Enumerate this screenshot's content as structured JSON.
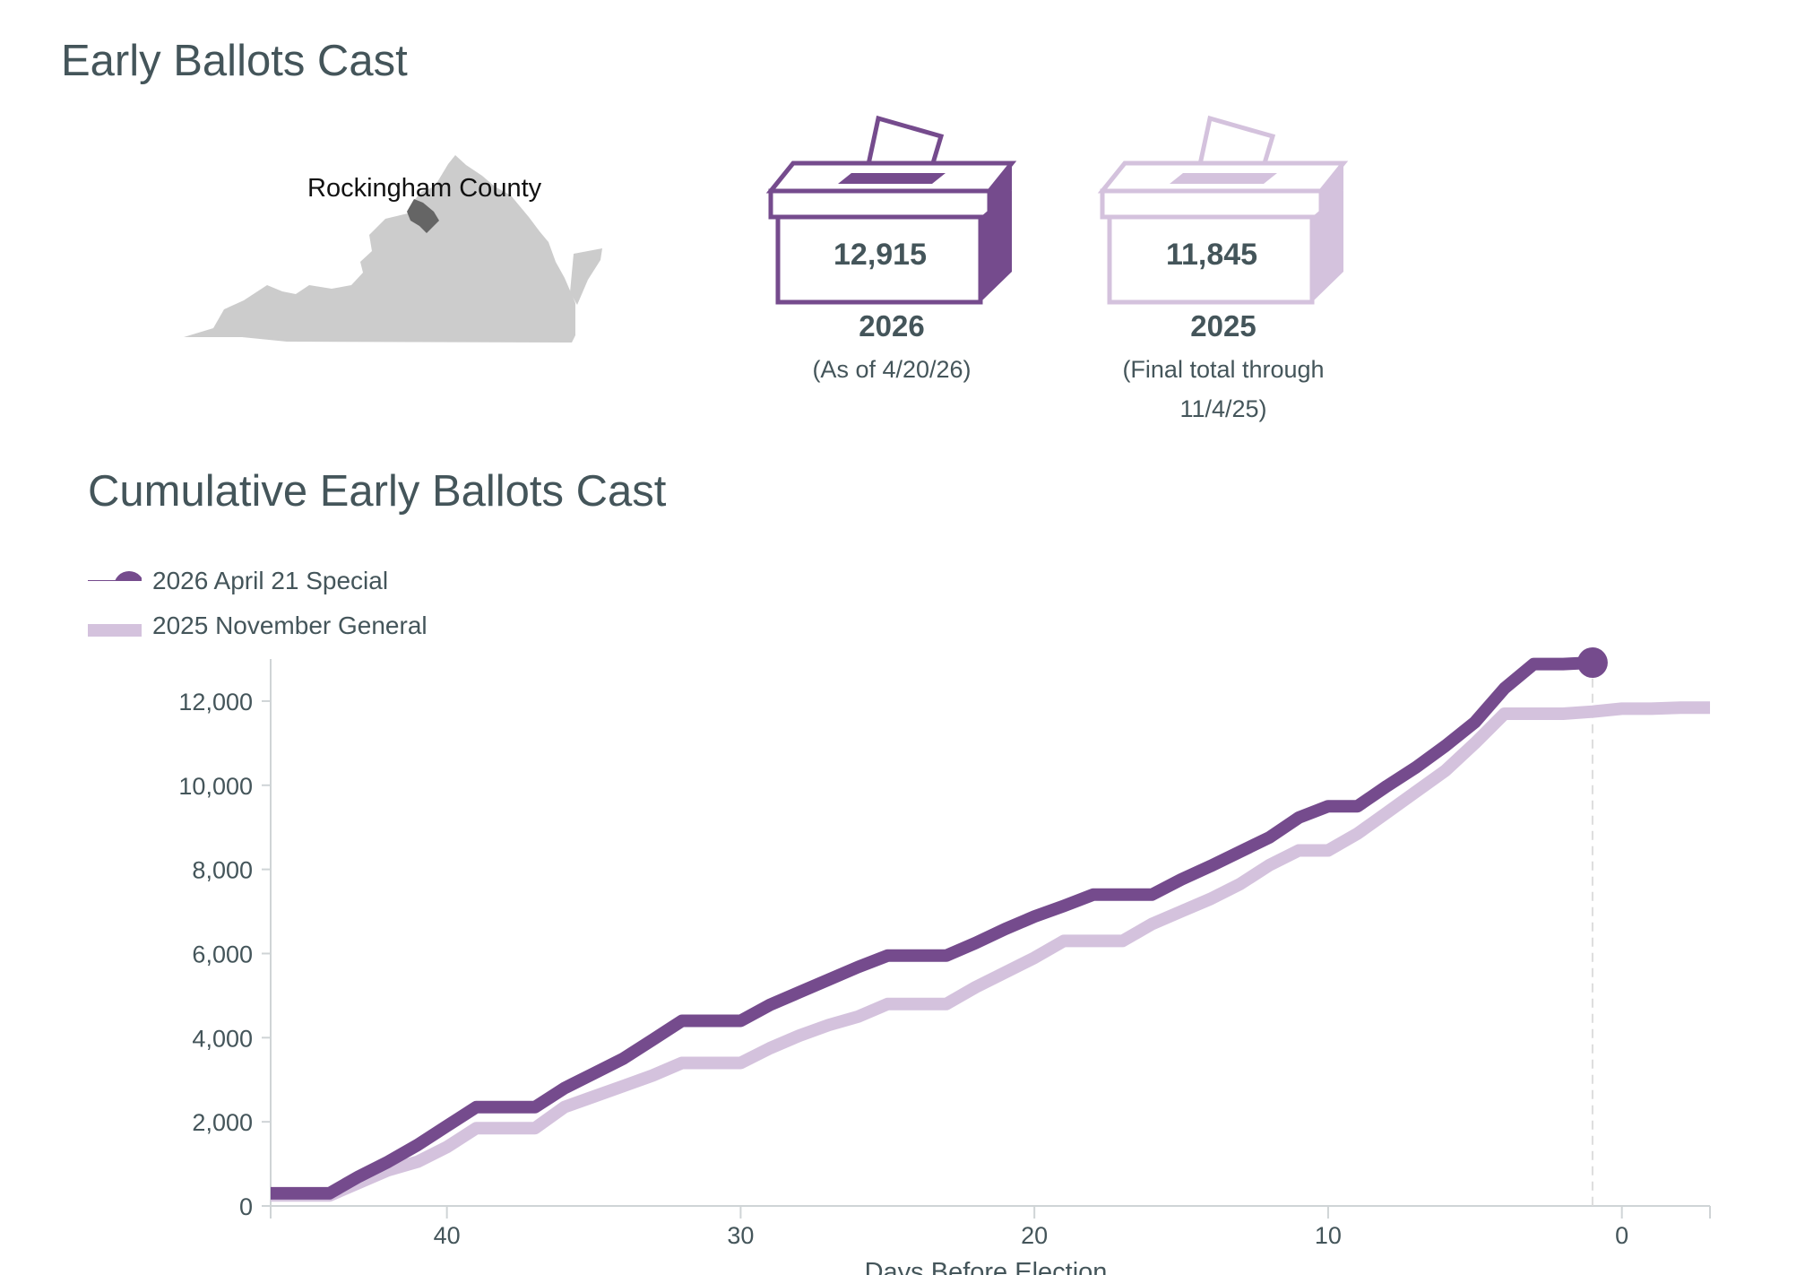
{
  "header": {
    "title": "Early Ballots Cast"
  },
  "map": {
    "county_label": "Rockingham County"
  },
  "ballot_boxes": [
    {
      "count": "12,915",
      "year": "2026",
      "note_lines": [
        "(As of 4/20/26)"
      ],
      "color": "#754b8d"
    },
    {
      "count": "11,845",
      "year": "2025",
      "note_lines": [
        "(Final total through",
        "11/4/25)"
      ],
      "color": "#d4c2dd"
    }
  ],
  "chart_title": "Cumulative Early Ballots Cast",
  "legend": [
    {
      "label": "2026 April 21 Special",
      "color": "#754b8d"
    },
    {
      "label": "2025 November General",
      "color": "#d4c2dd"
    }
  ],
  "chart_data": {
    "type": "line",
    "xlabel": "Days Before Election",
    "ylabel": "",
    "xlim": [
      46,
      -3
    ],
    "ylim": [
      0,
      13000
    ],
    "x_ticks": [
      40,
      30,
      20,
      10,
      0
    ],
    "y_ticks": [
      0,
      2000,
      4000,
      6000,
      8000,
      10000,
      12000
    ],
    "y_tick_labels": [
      "0",
      "2,000",
      "4,000",
      "6,000",
      "8,000",
      "10,000",
      "12,000"
    ],
    "grid": false,
    "legend_position": "top-left",
    "election_day_marker": 1,
    "series": [
      {
        "name": "2026 April 21 Special",
        "color": "#754b8d",
        "x": [
          46,
          44,
          43,
          42,
          41,
          40,
          39,
          38,
          37,
          36,
          35,
          34,
          33,
          32,
          31,
          30,
          29,
          28,
          27,
          26,
          25,
          24,
          23,
          22,
          21,
          20,
          19,
          18,
          17,
          16,
          15,
          14,
          13,
          12,
          11,
          10,
          9,
          8,
          7,
          6,
          5,
          4,
          3,
          2,
          1
        ],
        "values": [
          300,
          300,
          700,
          1050,
          1450,
          1900,
          2350,
          2350,
          2350,
          2800,
          3150,
          3500,
          3950,
          4400,
          4400,
          4400,
          4780,
          5080,
          5380,
          5680,
          5950,
          5950,
          5950,
          6250,
          6580,
          6880,
          7130,
          7400,
          7400,
          7400,
          7760,
          8080,
          8420,
          8760,
          9230,
          9500,
          9500,
          9980,
          10430,
          10940,
          11500,
          12300,
          12880,
          12880,
          12915
        ]
      },
      {
        "name": "2025 November General",
        "color": "#d4c2dd",
        "x": [
          46,
          44,
          43,
          42,
          41,
          40,
          39,
          38,
          37,
          36,
          35,
          34,
          33,
          32,
          31,
          30,
          29,
          28,
          27,
          26,
          25,
          24,
          23,
          22,
          21,
          20,
          19,
          18,
          17,
          16,
          15,
          14,
          13,
          12,
          11,
          10,
          9,
          8,
          7,
          6,
          5,
          4,
          3,
          2,
          1,
          0,
          -1,
          -2,
          -3
        ],
        "values": [
          250,
          250,
          550,
          850,
          1050,
          1400,
          1850,
          1850,
          1850,
          2350,
          2600,
          2850,
          3100,
          3400,
          3400,
          3400,
          3750,
          4050,
          4300,
          4500,
          4800,
          4800,
          4800,
          5200,
          5550,
          5900,
          6300,
          6300,
          6300,
          6700,
          7000,
          7300,
          7650,
          8100,
          8450,
          8450,
          8850,
          9350,
          9850,
          10350,
          11000,
          11700,
          11700,
          11700,
          11750,
          11820,
          11820,
          11845,
          11845
        ]
      }
    ]
  }
}
